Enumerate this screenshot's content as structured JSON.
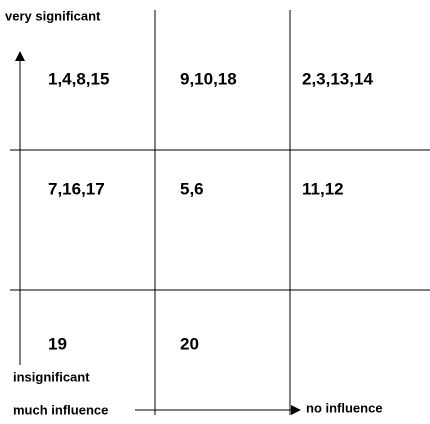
{
  "axis": {
    "top_label": "very significant",
    "bottom_label": "insignificant",
    "left_label": "much influence",
    "right_label": "no influence"
  },
  "grid": {
    "rows": [
      [
        "1,4,8,15",
        "9,10,18",
        "2,3,13,14"
      ],
      [
        "7,16,17",
        "5,6",
        "11,12"
      ],
      [
        "19",
        "20"
      ]
    ]
  }
}
